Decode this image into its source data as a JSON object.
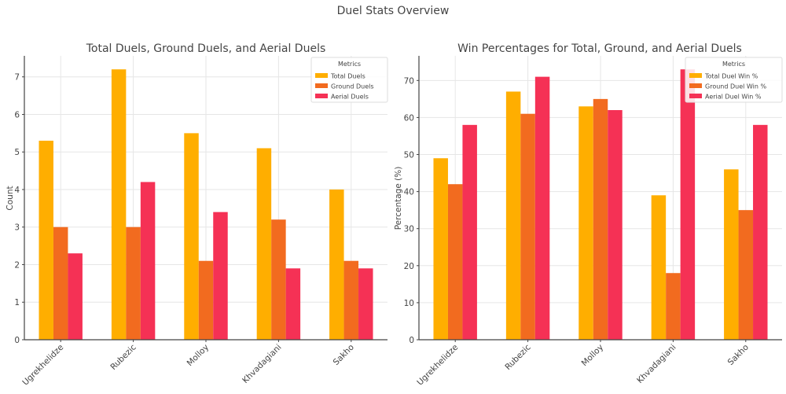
{
  "suptitle": "Duel Stats Overview",
  "colors": {
    "total": "#FFAE00",
    "ground": "#F26B1F",
    "aerial": "#F53155"
  },
  "chart_data": [
    {
      "type": "bar",
      "title": "Total Duels, Ground Duels, and Aerial Duels",
      "xlabel": "",
      "ylabel": "Count",
      "categories": [
        "Ugrekhelidze",
        "Rubezic",
        "Molloy",
        "Khvadagiani",
        "Sakho"
      ],
      "ylim": [
        0,
        7.56
      ],
      "yticks": [
        0,
        1,
        2,
        3,
        4,
        5,
        6,
        7
      ],
      "grid": true,
      "legend": {
        "title": "Metrics",
        "placement": "top-right"
      },
      "series": [
        {
          "name": "Total Duels",
          "values": [
            5.3,
            7.2,
            5.5,
            5.1,
            4.0
          ]
        },
        {
          "name": "Ground Duels",
          "values": [
            3.0,
            3.0,
            2.1,
            3.2,
            2.1
          ]
        },
        {
          "name": "Aerial Duels",
          "values": [
            2.3,
            4.2,
            3.4,
            1.9,
            1.9
          ]
        }
      ]
    },
    {
      "type": "bar",
      "title": "Win Percentages for Total, Ground, and Aerial Duels",
      "xlabel": "",
      "ylabel": "Percentage (%)",
      "categories": [
        "Ugrekhelidze",
        "Rubezic",
        "Molloy",
        "Khvadagiani",
        "Sakho"
      ],
      "ylim": [
        0,
        76.65
      ],
      "yticks": [
        0,
        10,
        20,
        30,
        40,
        50,
        60,
        70
      ],
      "grid": true,
      "legend": {
        "title": "Metrics",
        "placement": "top-right"
      },
      "series": [
        {
          "name": "Total Duel Win %",
          "values": [
            49,
            67,
            63,
            39,
            46
          ]
        },
        {
          "name": "Ground Duel Win %",
          "values": [
            42,
            61,
            65,
            18,
            35
          ]
        },
        {
          "name": "Aerial Duel Win %",
          "values": [
            58,
            71,
            62,
            73,
            58
          ]
        }
      ]
    }
  ]
}
